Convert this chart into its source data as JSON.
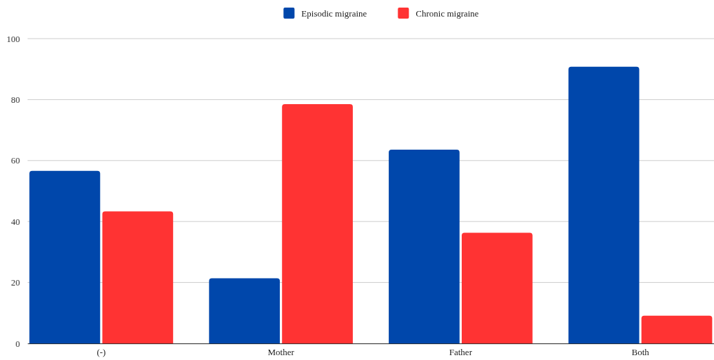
{
  "chart_data": {
    "type": "bar",
    "categories": [
      "(-)",
      "Mother",
      "Father",
      "Both"
    ],
    "series": [
      {
        "name": "Episodic migraine",
        "color": "#0047ab",
        "values": [
          56.6,
          21.4,
          63.6,
          90.8
        ]
      },
      {
        "name": "Chronic migraine",
        "color": "#ff3333",
        "values": [
          43.3,
          78.5,
          36.3,
          9.1
        ]
      }
    ],
    "ylim": [
      0,
      100
    ],
    "yticks": [
      0,
      20,
      40,
      60,
      80,
      100
    ],
    "grid": "y",
    "legend": "top"
  }
}
